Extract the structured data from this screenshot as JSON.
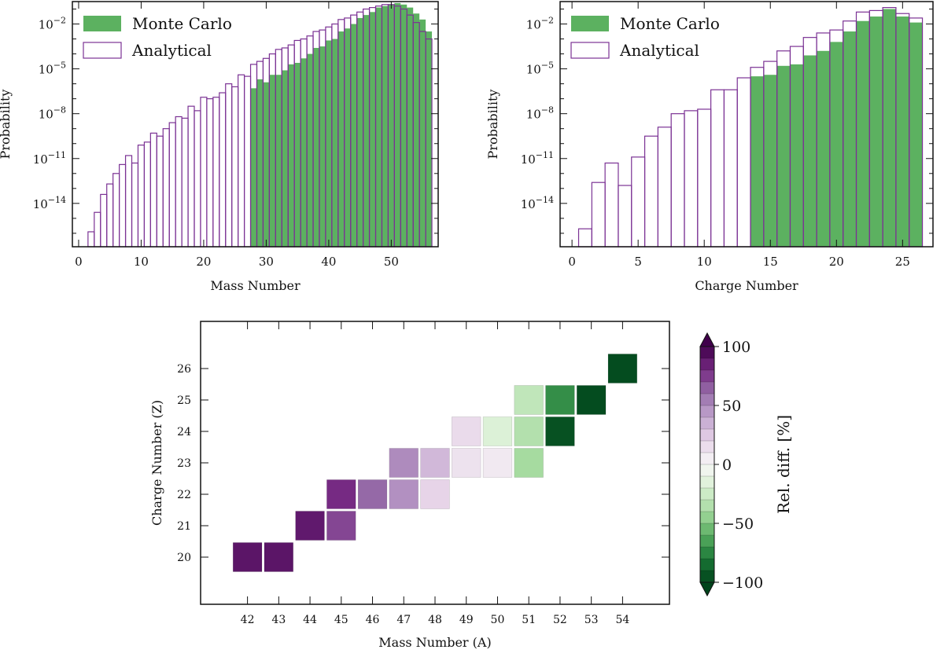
{
  "colors": {
    "mc_fill": "#5cb160",
    "analytical_edge": "#7b3294",
    "axis": "#111111",
    "cmap": [
      "#00441b",
      "#1b7837",
      "#5aae61",
      "#a6dba0",
      "#d9f0d3",
      "#f7f7f7",
      "#e7d4e8",
      "#c2a5cf",
      "#9970ab",
      "#762a83",
      "#40004b"
    ]
  },
  "chart_data": [
    {
      "type": "bar",
      "title": "",
      "xlabel": "Mass Number",
      "ylabel": "Probability",
      "yscale": "log",
      "xlim": [
        -1,
        57.5
      ],
      "ylim_log10": [
        -16.9,
        -0.5
      ],
      "xticks": [
        0,
        10,
        20,
        30,
        40,
        50
      ],
      "yticks": [
        {
          "exp": -2,
          "label": "10",
          "sup": "−2"
        },
        {
          "exp": -5,
          "label": "10",
          "sup": "−5"
        },
        {
          "exp": -8,
          "label": "10",
          "sup": "−8"
        },
        {
          "exp": -11,
          "label": "10",
          "sup": "−11"
        },
        {
          "exp": -14,
          "label": "10",
          "sup": "−14"
        }
      ],
      "legend": [
        "Monte Carlo",
        "Analytical"
      ],
      "legend_position": "top-left",
      "series": [
        {
          "name": "Analytical",
          "style": "outline",
          "x": [
            2,
            3,
            4,
            5,
            6,
            7,
            8,
            9,
            10,
            11,
            12,
            13,
            14,
            15,
            16,
            17,
            18,
            19,
            20,
            21,
            22,
            23,
            24,
            25,
            26,
            27,
            28,
            29,
            30,
            31,
            32,
            33,
            34,
            35,
            36,
            37,
            38,
            39,
            40,
            41,
            42,
            43,
            44,
            45,
            46,
            47,
            48,
            49,
            50,
            51,
            52,
            53,
            54,
            55,
            56
          ],
          "log10_values": [
            -15.9,
            -14.6,
            -13.4,
            -12.7,
            -12.0,
            -11.4,
            -10.8,
            -11.3,
            -10.1,
            -9.9,
            -9.3,
            -9.5,
            -9.0,
            -8.6,
            -8.2,
            -8.3,
            -7.5,
            -7.8,
            -6.9,
            -7.0,
            -6.9,
            -6.6,
            -6.0,
            -6.2,
            -5.4,
            -5.5,
            -4.7,
            -4.5,
            -4.3,
            -4.0,
            -3.7,
            -3.6,
            -3.4,
            -3.1,
            -3.0,
            -2.8,
            -2.5,
            -2.4,
            -2.2,
            -2.0,
            -1.7,
            -1.6,
            -1.4,
            -1.2,
            -1.0,
            -0.9,
            -0.8,
            -0.7,
            -0.7,
            -0.8,
            -1.0,
            -1.4,
            -1.9,
            -2.5,
            -3.0
          ]
        },
        {
          "name": "Monte Carlo",
          "style": "filled",
          "x": [
            28,
            29,
            30,
            31,
            32,
            33,
            34,
            35,
            36,
            37,
            38,
            39,
            40,
            41,
            42,
            43,
            44,
            45,
            46,
            47,
            48,
            49,
            50,
            51,
            52,
            53,
            54,
            55,
            56
          ],
          "log10_values": [
            -6.3,
            -5.7,
            -5.9,
            -5.4,
            -5.4,
            -5.1,
            -4.7,
            -4.6,
            -4.3,
            -4.0,
            -3.6,
            -3.5,
            -3.1,
            -3.0,
            -2.5,
            -2.3,
            -2.0,
            -1.6,
            -1.4,
            -1.2,
            -0.9,
            -0.8,
            -0.7,
            -0.6,
            -0.7,
            -0.9,
            -1.3,
            -1.7,
            -2.5
          ]
        }
      ]
    },
    {
      "type": "bar",
      "title": "",
      "xlabel": "Charge Number",
      "ylabel": "Probability",
      "yscale": "log",
      "xlim": [
        -0.9,
        27.3
      ],
      "ylim_log10": [
        -16.9,
        -0.5
      ],
      "xticks": [
        0,
        5,
        10,
        15,
        20,
        25
      ],
      "yticks": [
        {
          "exp": -2,
          "label": "10",
          "sup": "−2"
        },
        {
          "exp": -5,
          "label": "10",
          "sup": "−5"
        },
        {
          "exp": -8,
          "label": "10",
          "sup": "−8"
        },
        {
          "exp": -11,
          "label": "10",
          "sup": "−11"
        },
        {
          "exp": -14,
          "label": "10",
          "sup": "−14"
        }
      ],
      "legend": [
        "Monte Carlo",
        "Analytical"
      ],
      "legend_position": "top-left",
      "series": [
        {
          "name": "Analytical",
          "style": "outline",
          "x": [
            1,
            2,
            3,
            4,
            5,
            6,
            7,
            8,
            9,
            10,
            11,
            12,
            13,
            14,
            15,
            16,
            17,
            18,
            19,
            20,
            21,
            22,
            23,
            24,
            25,
            26
          ],
          "log10_values": [
            -15.7,
            -12.6,
            -11.3,
            -12.8,
            -10.9,
            -9.5,
            -8.9,
            -8.0,
            -7.8,
            -7.7,
            -6.4,
            -6.4,
            -5.6,
            -4.9,
            -4.5,
            -3.8,
            -3.5,
            -2.9,
            -2.6,
            -2.4,
            -1.8,
            -1.2,
            -1.1,
            -0.9,
            -1.3,
            -1.6
          ]
        },
        {
          "name": "Monte Carlo",
          "style": "filled",
          "x": [
            14,
            15,
            16,
            17,
            18,
            19,
            20,
            21,
            22,
            23,
            24,
            25,
            26
          ],
          "log10_values": [
            -5.5,
            -5.4,
            -4.8,
            -4.7,
            -4.1,
            -3.8,
            -3.2,
            -2.5,
            -1.8,
            -1.5,
            -1.0,
            -1.5,
            -1.9
          ]
        }
      ]
    },
    {
      "type": "heatmap",
      "title": "",
      "xlabel": "Mass Number (A)",
      "ylabel": "Charge Number (Z)",
      "x_categories": [
        42,
        43,
        44,
        45,
        46,
        47,
        48,
        49,
        50,
        51,
        52,
        53,
        54
      ],
      "y_categories": [
        20,
        21,
        22,
        23,
        24,
        25,
        26
      ],
      "xlim": [
        40.5,
        55.5
      ],
      "ylim": [
        18.5,
        27.5
      ],
      "colorbar_label": "Rel. diff. [%]",
      "colorbar_ticks": [
        "100",
        "50",
        "0",
        "−50",
        "−100"
      ],
      "colorbar_tick_values": [
        100,
        50,
        0,
        -50,
        -100
      ],
      "vmin": -100,
      "vmax": 100,
      "cells": [
        {
          "A": 42,
          "Z": 20,
          "value": 90
        },
        {
          "A": 43,
          "Z": 20,
          "value": 90
        },
        {
          "A": 44,
          "Z": 21,
          "value": 88
        },
        {
          "A": 45,
          "Z": 21,
          "value": 72
        },
        {
          "A": 45,
          "Z": 22,
          "value": 80
        },
        {
          "A": 46,
          "Z": 22,
          "value": 62
        },
        {
          "A": 47,
          "Z": 22,
          "value": 48
        },
        {
          "A": 48,
          "Z": 22,
          "value": 20
        },
        {
          "A": 47,
          "Z": 23,
          "value": 50
        },
        {
          "A": 48,
          "Z": 23,
          "value": 32
        },
        {
          "A": 49,
          "Z": 23,
          "value": 12
        },
        {
          "A": 50,
          "Z": 23,
          "value": 8
        },
        {
          "A": 51,
          "Z": 23,
          "value": -40
        },
        {
          "A": 49,
          "Z": 24,
          "value": 16
        },
        {
          "A": 50,
          "Z": 24,
          "value": -18
        },
        {
          "A": 51,
          "Z": 24,
          "value": -35
        },
        {
          "A": 52,
          "Z": 24,
          "value": -95
        },
        {
          "A": 51,
          "Z": 25,
          "value": -30
        },
        {
          "A": 52,
          "Z": 25,
          "value": -72
        },
        {
          "A": 53,
          "Z": 25,
          "value": -97
        },
        {
          "A": 54,
          "Z": 26,
          "value": -97
        }
      ]
    }
  ]
}
